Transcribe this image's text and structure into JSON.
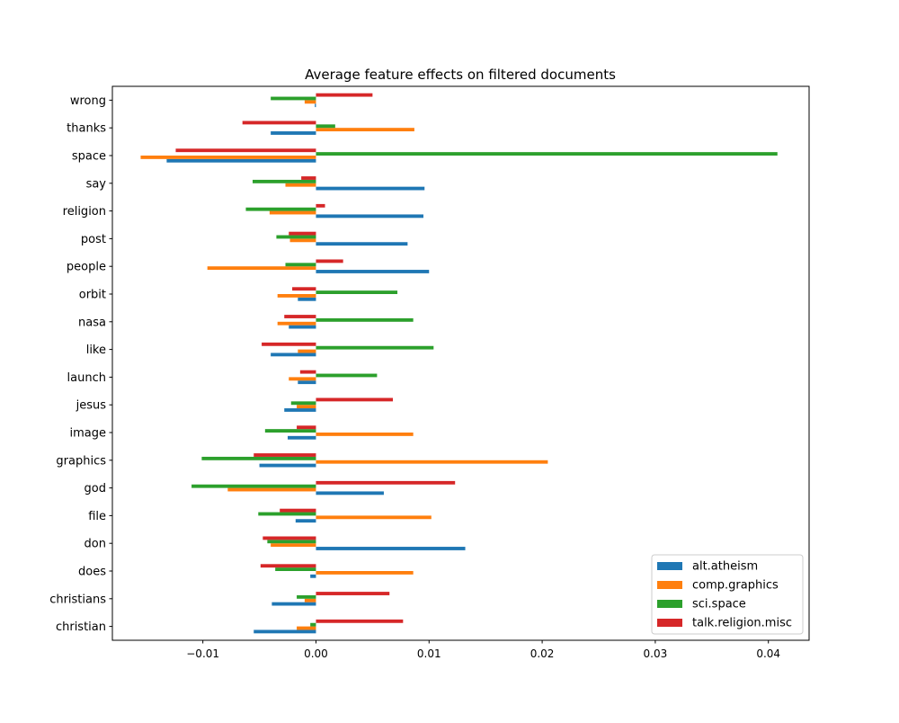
{
  "chart_data": {
    "type": "bar",
    "orientation": "horizontal",
    "title": "Average feature effects on filtered documents",
    "xlabel": "",
    "ylabel": "",
    "xlim": [
      -0.018,
      0.0436
    ],
    "xticks": [
      -0.01,
      0.0,
      0.01,
      0.02,
      0.03,
      0.04
    ],
    "xtick_labels": [
      "−0.01",
      "0.00",
      "0.01",
      "0.02",
      "0.03",
      "0.04"
    ],
    "grid": false,
    "legend_position": "lower-right",
    "categories": [
      "christian",
      "christians",
      "does",
      "don",
      "file",
      "god",
      "graphics",
      "image",
      "jesus",
      "launch",
      "like",
      "nasa",
      "orbit",
      "people",
      "post",
      "religion",
      "say",
      "space",
      "thanks",
      "wrong"
    ],
    "series": [
      {
        "name": "alt.atheism",
        "color": "#1f77b4",
        "values": [
          -0.0055,
          -0.0039,
          -0.0005,
          0.0132,
          -0.0018,
          0.006,
          -0.005,
          -0.0025,
          -0.0028,
          -0.0016,
          -0.004,
          -0.0024,
          -0.0016,
          0.01,
          0.0081,
          0.0095,
          0.0096,
          -0.0132,
          -0.004,
          -0.0001
        ]
      },
      {
        "name": "comp.graphics",
        "color": "#ff7f0e",
        "values": [
          -0.0017,
          -0.001,
          0.0086,
          -0.004,
          0.0102,
          -0.0078,
          0.0205,
          0.0086,
          -0.0017,
          -0.0024,
          -0.0016,
          -0.0034,
          -0.0034,
          -0.0096,
          -0.0023,
          -0.0041,
          -0.0027,
          -0.0155,
          0.0087,
          -0.001
        ]
      },
      {
        "name": "sci.space",
        "color": "#2ca02c",
        "values": [
          -0.0005,
          -0.0017,
          -0.0036,
          -0.0043,
          -0.0051,
          -0.011,
          -0.0101,
          -0.0045,
          -0.0022,
          0.0054,
          0.0104,
          0.0086,
          0.0072,
          -0.0027,
          -0.0035,
          -0.0062,
          -0.0056,
          0.0408,
          0.0017,
          -0.004
        ]
      },
      {
        "name": "talk.religion.misc",
        "color": "#d62728",
        "values": [
          0.0077,
          0.0065,
          -0.0049,
          -0.0047,
          -0.0032,
          0.0123,
          -0.0055,
          -0.0017,
          0.0068,
          -0.0014,
          -0.0048,
          -0.0028,
          -0.0021,
          0.0024,
          -0.0024,
          0.0008,
          -0.0013,
          -0.0124,
          -0.0065,
          0.005
        ]
      }
    ]
  }
}
